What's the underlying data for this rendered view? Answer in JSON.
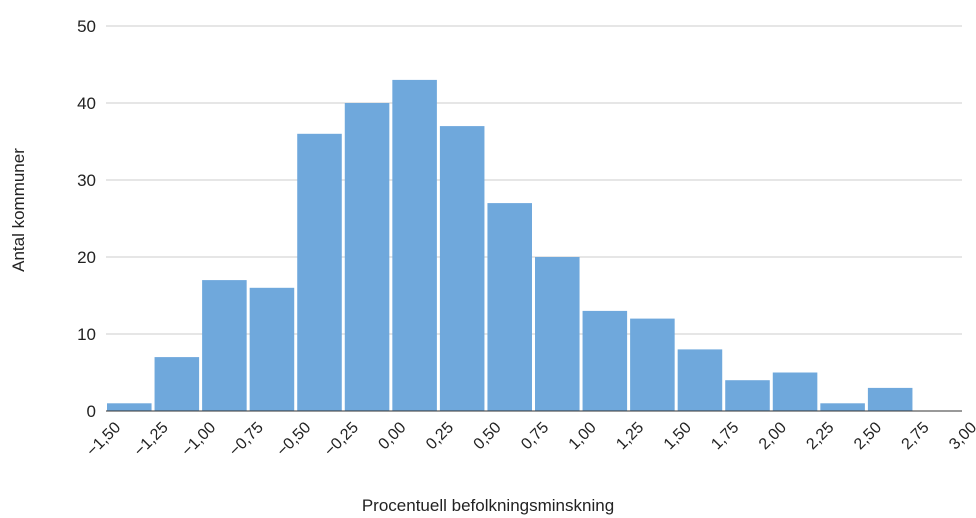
{
  "chart_data": {
    "type": "bar",
    "title": "",
    "xlabel": "Procentuell befolkningsminskning",
    "ylabel": "Antal kommuner",
    "x_ticks": [
      "−1,50",
      "−1,25",
      "−1,00",
      "−0,75",
      "−0,50",
      "−0,25",
      "0,00",
      "0,25",
      "0,50",
      "0,75",
      "1,00",
      "1,25",
      "1,50",
      "1,75",
      "2,00",
      "2,25",
      "2,50",
      "2,75",
      "3,00"
    ],
    "y_ticks": [
      "0",
      "10",
      "20",
      "30",
      "40",
      "50"
    ],
    "bin_edges": [
      -1.5,
      -1.25,
      -1.0,
      -0.75,
      -0.5,
      -0.25,
      0.0,
      0.25,
      0.5,
      0.75,
      1.0,
      1.25,
      1.5,
      1.75,
      2.0,
      2.25,
      2.5,
      2.75,
      3.0
    ],
    "values": [
      1,
      7,
      17,
      16,
      36,
      40,
      43,
      37,
      27,
      20,
      13,
      12,
      8,
      4,
      5,
      1,
      3,
      0
    ],
    "ylim": [
      0,
      50
    ],
    "grid": true,
    "bar_color": "#6fa8dc",
    "legend": "none"
  }
}
